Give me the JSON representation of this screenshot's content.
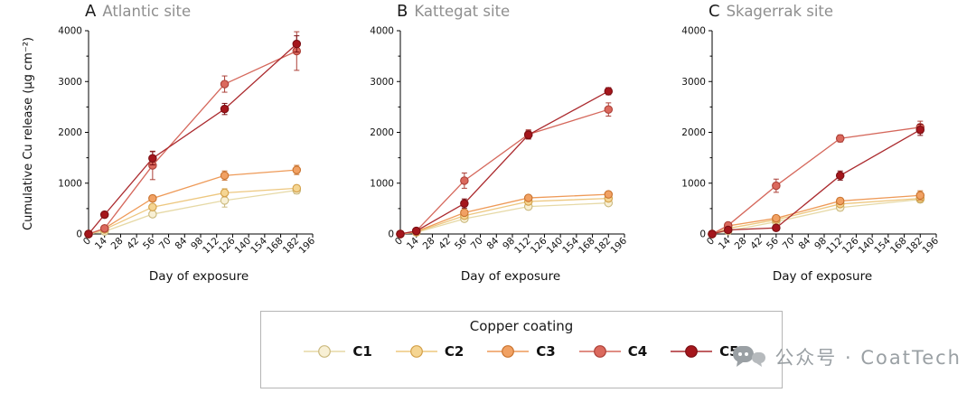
{
  "figure": {
    "ylabel": "Cumulative Cu release (µg cm⁻²)",
    "xlabel": "Day of exposure"
  },
  "legend": {
    "title": "Copper coating",
    "entries": [
      {
        "label": "C1",
        "fill": "#f8f0d5",
        "stroke": "#cbb97e",
        "line": "#e6d9a6"
      },
      {
        "label": "C2",
        "fill": "#f5d592",
        "stroke": "#d3a049",
        "line": "#edc77f"
      },
      {
        "label": "C3",
        "fill": "#f1a163",
        "stroke": "#c9732f",
        "line": "#ee9a58"
      },
      {
        "label": "C4",
        "fill": "#db695d",
        "stroke": "#ac4038",
        "line": "#d5685c"
      },
      {
        "label": "C5",
        "fill": "#a5161c",
        "stroke": "#7a0f14",
        "line": "#ab2a2e"
      }
    ]
  },
  "watermark": {
    "text": "公众号 · CoatTech"
  },
  "chart_data": [
    {
      "type": "line",
      "panel_label": "A",
      "title": "Atlantic site",
      "xlabel": "Day of exposure",
      "ylabel": "Cumulative Cu release (µg cm⁻²)",
      "xlim": [
        0,
        196
      ],
      "ylim": [
        0,
        4000
      ],
      "xticks": [
        0,
        14,
        28,
        42,
        56,
        70,
        84,
        98,
        112,
        126,
        140,
        154,
        168,
        182,
        196
      ],
      "yticks": [
        0,
        1000,
        2000,
        3000,
        4000
      ],
      "x": [
        0,
        14,
        56,
        119,
        182
      ],
      "series": [
        {
          "name": "C1",
          "y": [
            0,
            50,
            390,
            660,
            860
          ],
          "err": [
            0,
            0,
            60,
            130,
            70
          ]
        },
        {
          "name": "C2",
          "y": [
            0,
            90,
            530,
            810,
            900
          ],
          "err": [
            0,
            0,
            50,
            80,
            60
          ]
        },
        {
          "name": "C3",
          "y": [
            0,
            110,
            700,
            1150,
            1260
          ],
          "err": [
            0,
            0,
            60,
            90,
            90
          ]
        },
        {
          "name": "C4",
          "y": [
            0,
            110,
            1350,
            2950,
            3600
          ],
          "err": [
            0,
            30,
            280,
            160,
            380
          ]
        },
        {
          "name": "C5",
          "y": [
            0,
            380,
            1490,
            2460,
            3740
          ],
          "err": [
            0,
            40,
            130,
            110,
            160
          ]
        }
      ]
    },
    {
      "type": "line",
      "panel_label": "B",
      "title": "Kattegat site",
      "xlabel": "Day of exposure",
      "ylabel": "Cumulative Cu release (µg cm⁻²)",
      "xlim": [
        0,
        196
      ],
      "ylim": [
        0,
        4000
      ],
      "xticks": [
        0,
        14,
        28,
        42,
        56,
        70,
        84,
        98,
        112,
        126,
        140,
        154,
        168,
        182,
        196
      ],
      "yticks": [
        0,
        1000,
        2000,
        3000,
        4000
      ],
      "x": [
        0,
        14,
        56,
        112,
        182
      ],
      "series": [
        {
          "name": "C1",
          "y": [
            0,
            30,
            300,
            540,
            610
          ],
          "err": [
            0,
            0,
            40,
            60,
            50
          ]
        },
        {
          "name": "C2",
          "y": [
            0,
            40,
            360,
            640,
            700
          ],
          "err": [
            0,
            0,
            40,
            50,
            40
          ]
        },
        {
          "name": "C3",
          "y": [
            0,
            50,
            420,
            710,
            780
          ],
          "err": [
            0,
            0,
            40,
            50,
            50
          ]
        },
        {
          "name": "C4",
          "y": [
            0,
            60,
            1050,
            1960,
            2450
          ],
          "err": [
            0,
            0,
            150,
            90,
            130
          ]
        },
        {
          "name": "C5",
          "y": [
            0,
            60,
            600,
            1950,
            2810
          ],
          "err": [
            0,
            0,
            90,
            80,
            70
          ]
        }
      ]
    },
    {
      "type": "line",
      "panel_label": "C",
      "title": "Skagerrak site",
      "xlabel": "Day of exposure",
      "ylabel": "Cumulative Cu release (µg cm⁻²)",
      "xlim": [
        0,
        196
      ],
      "ylim": [
        0,
        4000
      ],
      "xticks": [
        0,
        14,
        28,
        42,
        56,
        70,
        84,
        98,
        112,
        126,
        140,
        154,
        168,
        182,
        196
      ],
      "yticks": [
        0,
        1000,
        2000,
        3000,
        4000
      ],
      "x": [
        0,
        14,
        56,
        112,
        182
      ],
      "series": [
        {
          "name": "C1",
          "y": [
            0,
            60,
            240,
            520,
            680
          ],
          "err": [
            0,
            0,
            40,
            60,
            60
          ]
        },
        {
          "name": "C2",
          "y": [
            0,
            110,
            280,
            590,
            700
          ],
          "err": [
            0,
            30,
            40,
            50,
            50
          ]
        },
        {
          "name": "C3",
          "y": [
            0,
            160,
            310,
            650,
            760
          ],
          "err": [
            0,
            40,
            50,
            60,
            90
          ]
        },
        {
          "name": "C4",
          "y": [
            0,
            170,
            950,
            1880,
            2100
          ],
          "err": [
            0,
            40,
            130,
            70,
            120
          ]
        },
        {
          "name": "C5",
          "y": [
            0,
            80,
            120,
            1150,
            2050
          ],
          "err": [
            0,
            0,
            40,
            90,
            110
          ]
        }
      ]
    }
  ]
}
